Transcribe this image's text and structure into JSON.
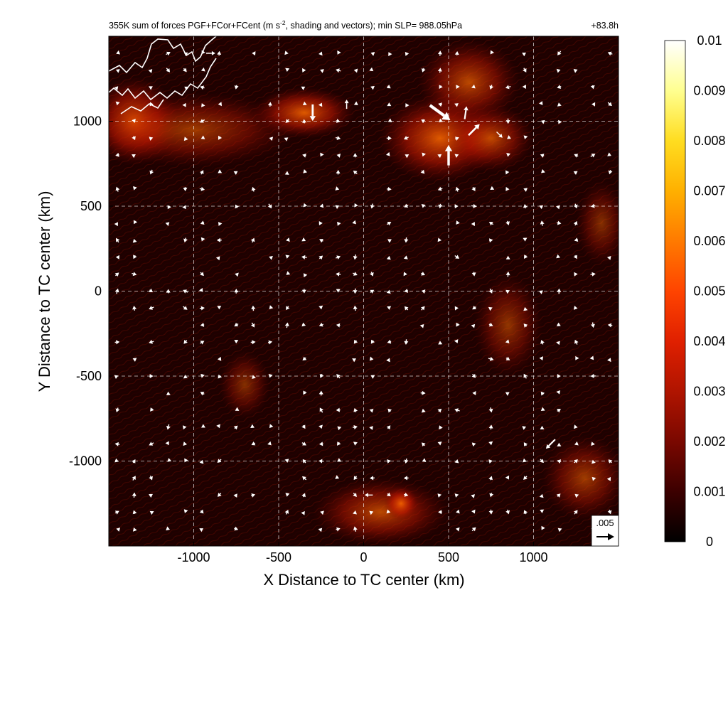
{
  "chart_data": {
    "type": "heatmap",
    "title_left": "355K sum of forces PGF+FCor+FCent (m s",
    "title_sup": "-2",
    "title_right": ", shading and vectors); min SLP= 988.05hPa",
    "time_label": "+83.8h",
    "xlabel": "X Distance to TC center (km)",
    "ylabel": "Y Distance to TC center (km)",
    "xlim": [
      -1500,
      1500
    ],
    "ylim": [
      -1500,
      1500
    ],
    "x_ticks": [
      -1000,
      -500,
      0,
      500,
      1000
    ],
    "x_tick_labels": [
      "-1000",
      "-500",
      "0",
      "500",
      "1000"
    ],
    "y_ticks": [
      1000,
      500,
      0,
      -500,
      -1000
    ],
    "y_tick_labels": [
      "1000",
      "500",
      "0",
      "-500",
      "-1000"
    ],
    "grid": true,
    "colorbar": {
      "range": [
        0,
        0.01
      ],
      "ticks": [
        0.01,
        0.009,
        0.008,
        0.007,
        0.006,
        0.005,
        0.004,
        0.003,
        0.002,
        0.001,
        0
      ],
      "tick_labels": [
        "0.01",
        "0.009",
        "0.008",
        "0.007",
        "0.006",
        "0.005",
        "0.004",
        "0.003",
        "0.002",
        "0.001",
        "0"
      ],
      "colormap": [
        "#000000",
        "#3c0000",
        "#7a0800",
        "#b01400",
        "#e02000",
        "#ff4400",
        "#ff7a00",
        "#ffb000",
        "#ffdd20",
        "#ffff90",
        "#ffffff"
      ]
    },
    "reference_vector": {
      "label": ".005",
      "value": 0.005
    },
    "shading_hotspots": [
      {
        "x": -1350,
        "y": 1000,
        "rx": 260,
        "ry": 260,
        "level": 0.006
      },
      {
        "x": -1000,
        "y": 950,
        "rx": 600,
        "ry": 220,
        "level": 0.003
      },
      {
        "x": -350,
        "y": 1050,
        "rx": 300,
        "ry": 150,
        "level": 0.006
      },
      {
        "x": 450,
        "y": 900,
        "rx": 360,
        "ry": 260,
        "level": 0.006
      },
      {
        "x": 620,
        "y": 1230,
        "rx": 300,
        "ry": 250,
        "level": 0.004
      },
      {
        "x": 750,
        "y": 900,
        "rx": 250,
        "ry": 200,
        "level": 0.004
      },
      {
        "x": 1400,
        "y": 400,
        "rx": 150,
        "ry": 250,
        "level": 0.002
      },
      {
        "x": 850,
        "y": -200,
        "rx": 200,
        "ry": 300,
        "level": 0.0025
      },
      {
        "x": -700,
        "y": -550,
        "rx": 150,
        "ry": 200,
        "level": 0.002
      },
      {
        "x": 100,
        "y": -1300,
        "rx": 400,
        "ry": 200,
        "level": 0.004
      },
      {
        "x": 1300,
        "y": -1100,
        "rx": 250,
        "ry": 250,
        "level": 0.003
      },
      {
        "x": 220,
        "y": -1250,
        "rx": 100,
        "ry": 100,
        "level": 0.006
      }
    ],
    "vectors_large": [
      {
        "x": 450,
        "y": 1050,
        "u": 0.0055,
        "v": -0.004
      },
      {
        "x": 500,
        "y": 800,
        "u": 0,
        "v": 0.0055
      },
      {
        "x": 650,
        "y": 950,
        "u": 0.003,
        "v": 0.003
      },
      {
        "x": -300,
        "y": 1050,
        "u": 0,
        "v": -0.0045
      },
      {
        "x": 600,
        "y": 1050,
        "u": 0.0005,
        "v": 0.0035
      },
      {
        "x": 1100,
        "y": -900,
        "u": -0.0025,
        "v": -0.0025
      },
      {
        "x": -900,
        "y": 1400,
        "u": 0.0025,
        "v": 0
      },
      {
        "x": 30,
        "y": -1200,
        "u": -0.0022,
        "v": 0
      },
      {
        "x": -100,
        "y": 1100,
        "u": 0,
        "v": 0.0025
      },
      {
        "x": 800,
        "y": 920,
        "u": 0.0016,
        "v": -0.0016
      }
    ]
  }
}
